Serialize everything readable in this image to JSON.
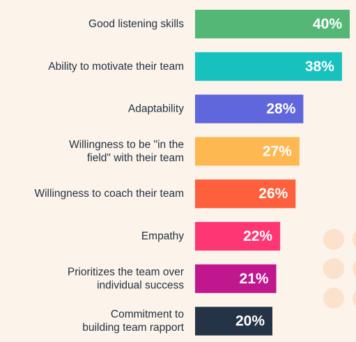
{
  "chart_data": {
    "type": "bar",
    "orientation": "horizontal",
    "categories": [
      [
        "Good listening skills"
      ],
      [
        "Ability to motivate their team"
      ],
      [
        "Adaptability"
      ],
      [
        "Willingness to be \"in the",
        "field\" with their team"
      ],
      [
        "Willingness to coach their team"
      ],
      [
        "Empathy"
      ],
      [
        "Prioritizes the team over",
        "individual success"
      ],
      [
        "Commitment to",
        "building team rapport"
      ]
    ],
    "values": [
      40,
      38,
      28,
      27,
      26,
      22,
      21,
      20
    ],
    "value_labels": [
      "40%",
      "38%",
      "28%",
      "27%",
      "26%",
      "22%",
      "21%",
      "20%"
    ],
    "colors": [
      "#55b776",
      "#16c1be",
      "#6066db",
      "#fdb851",
      "#fe5f3c",
      "#fe3774",
      "#c0178f",
      "#243446"
    ],
    "unit": "%",
    "title": "",
    "xlabel": "",
    "ylabel": "",
    "grid": false,
    "legend": "none"
  }
}
